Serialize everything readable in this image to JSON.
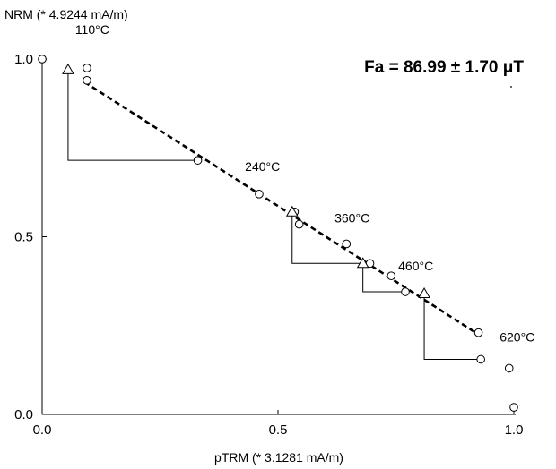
{
  "chart_data": {
    "type": "scatter",
    "title": "",
    "xlabel": "pTRM (* 3.1281 mA/m)",
    "ylabel": "NRM (* 4.9244 mA/m)",
    "annotation": "Fa = 86.99 ± 1.70 μT",
    "xlim": [
      0,
      1
    ],
    "ylim": [
      0,
      1
    ],
    "x_ticks": [
      "0.0",
      "0.5",
      "1.0"
    ],
    "y_ticks": [
      "0.0",
      "0.5",
      "1.0"
    ],
    "grid": false,
    "legend": "none",
    "series": [
      {
        "kind": "circles",
        "x": [
          0.0,
          0.095,
          0.095,
          0.33,
          0.46,
          0.535,
          0.545,
          0.645,
          0.695,
          0.74,
          0.77,
          0.925,
          0.93,
          0.99,
          1.0
        ],
        "y": [
          1.0,
          0.975,
          0.94,
          0.715,
          0.62,
          0.57,
          0.535,
          0.48,
          0.425,
          0.39,
          0.345,
          0.23,
          0.155,
          0.13,
          0.02
        ]
      },
      {
        "kind": "triangles",
        "x": [
          0.055,
          0.53,
          0.68,
          0.81
        ],
        "y": [
          0.97,
          0.57,
          0.425,
          0.34
        ]
      }
    ],
    "fit_line": {
      "x": [
        0.09,
        0.925
      ],
      "y": [
        0.935,
        0.225
      ]
    },
    "check_steps": [
      {
        "from": [
          0.055,
          0.97
        ],
        "corner": [
          0.055,
          0.715
        ],
        "to": [
          0.33,
          0.715
        ]
      },
      {
        "from": [
          0.53,
          0.57
        ],
        "corner": [
          0.53,
          0.425
        ],
        "to": [
          0.695,
          0.425
        ]
      },
      {
        "from": [
          0.68,
          0.425
        ],
        "corner": [
          0.68,
          0.345
        ],
        "to": [
          0.77,
          0.345
        ]
      },
      {
        "from": [
          0.81,
          0.34
        ],
        "corner": [
          0.81,
          0.155
        ],
        "to": [
          0.93,
          0.155
        ]
      }
    ],
    "temperature_labels": [
      {
        "text": "110°C",
        "x": 0.07,
        "y": 1.07
      },
      {
        "text": "240°C",
        "x": 0.43,
        "y": 0.685
      },
      {
        "text": "360°C",
        "x": 0.62,
        "y": 0.54
      },
      {
        "text": "460°C",
        "x": 0.755,
        "y": 0.405
      },
      {
        "text": "620°C",
        "x": 0.97,
        "y": 0.205
      }
    ],
    "colors": {
      "marks": "#000000",
      "background": "#ffffff"
    }
  }
}
